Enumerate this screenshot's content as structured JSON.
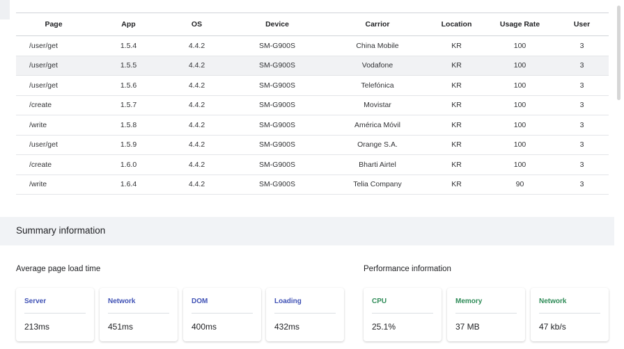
{
  "table": {
    "columns": [
      "Page",
      "App",
      "OS",
      "Device",
      "Carrior",
      "Location",
      "Usage Rate",
      "User"
    ],
    "rows": [
      [
        "/user/get",
        "1.5.4",
        "4.4.2",
        "SM-G900S",
        "China Mobile",
        "KR",
        "100",
        "3"
      ],
      [
        "/user/get",
        "1.5.5",
        "4.4.2",
        "SM-G900S",
        "Vodafone",
        "KR",
        "100",
        "3"
      ],
      [
        "/user/get",
        "1.5.6",
        "4.4.2",
        "SM-G900S",
        "Telefónica",
        "KR",
        "100",
        "3"
      ],
      [
        "/create",
        "1.5.7",
        "4.4.2",
        "SM-G900S",
        "Movistar",
        "KR",
        "100",
        "3"
      ],
      [
        "/write",
        "1.5.8",
        "4.4.2",
        "SM-G900S",
        "América Móvil",
        "KR",
        "100",
        "3"
      ],
      [
        "/user/get",
        "1.5.9",
        "4.4.2",
        "SM-G900S",
        "Orange S.A.",
        "KR",
        "100",
        "3"
      ],
      [
        "/create",
        "1.6.0",
        "4.4.2",
        "SM-G900S",
        "Bharti Airtel",
        "KR",
        "100",
        "3"
      ],
      [
        "/write",
        "1.6.4",
        "4.4.2",
        "SM-G900S",
        "Telia Company",
        "KR",
        "90",
        "3"
      ]
    ]
  },
  "summary": {
    "title": "Summary information",
    "load_time": {
      "title": "Average page load time",
      "accent_color": "#3f51b5",
      "cards": [
        {
          "label": "Server",
          "value": "213ms"
        },
        {
          "label": "Network",
          "value": "451ms"
        },
        {
          "label": "DOM",
          "value": "400ms"
        },
        {
          "label": "Loading",
          "value": "432ms"
        }
      ]
    },
    "performance": {
      "title": "Performance information",
      "accent_color": "#2e8b57",
      "cards": [
        {
          "label": "CPU",
          "value": "25.1%"
        },
        {
          "label": "Memory",
          "value": "37 MB"
        },
        {
          "label": "Network",
          "value": "47 kb/s"
        }
      ]
    }
  }
}
